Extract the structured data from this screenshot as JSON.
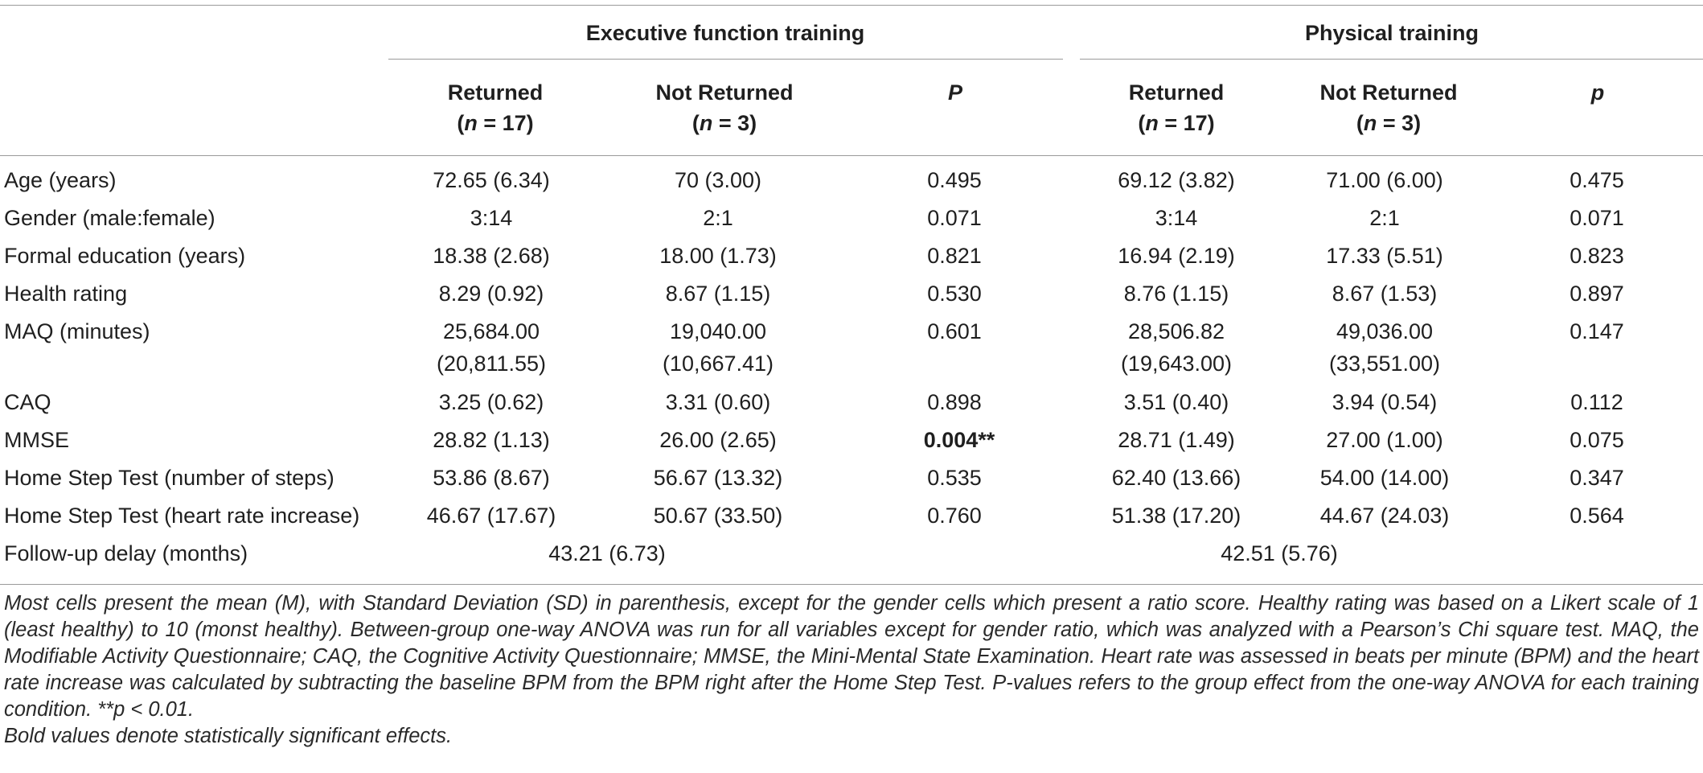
{
  "groups": {
    "exec": "Executive function training",
    "phys": "Physical training"
  },
  "columns": {
    "returned": "Returned",
    "not_returned": "Not Returned",
    "n_returned_pre": "(",
    "n_italic": "n",
    "n17": " = 17)",
    "n3": " = 3)",
    "p_exec": "P",
    "p_phys": "p"
  },
  "rows": [
    {
      "label": "Age (years)",
      "ef_ret": "72.65 (6.34)",
      "ef_not": "70 (3.00)",
      "ef_p": "0.495",
      "pt_ret": "69.12 (3.82)",
      "pt_not": "71.00 (6.00)",
      "pt_p": "0.475"
    },
    {
      "label": "Gender (male:female)",
      "ef_ret": "3:14",
      "ef_not": "2:1",
      "ef_p": "0.071",
      "pt_ret": "3:14",
      "pt_not": "2:1",
      "pt_p": "0.071"
    },
    {
      "label": "Formal education (years)",
      "ef_ret": "18.38 (2.68)",
      "ef_not": "18.00 (1.73)",
      "ef_p": "0.821",
      "pt_ret": "16.94 (2.19)",
      "pt_not": "17.33 (5.51)",
      "pt_p": "0.823"
    },
    {
      "label": "Health rating",
      "ef_ret": "8.29 (0.92)",
      "ef_not": "8.67 (1.15)",
      "ef_p": "0.530",
      "pt_ret": "8.76 (1.15)",
      "pt_not": "8.67 (1.53)",
      "pt_p": "0.897"
    },
    {
      "label": "MAQ (minutes)",
      "ef_ret": "25,684.00",
      "ef_ret2": "(20,811.55)",
      "ef_not": "19,040.00",
      "ef_not2": "(10,667.41)",
      "ef_p": "0.601",
      "pt_ret": "28,506.82",
      "pt_ret2": "(19,643.00)",
      "pt_not": "49,036.00",
      "pt_not2": "(33,551.00)",
      "pt_p": "0.147"
    },
    {
      "label": "CAQ",
      "ef_ret": "3.25 (0.62)",
      "ef_not": "3.31 (0.60)",
      "ef_p": "0.898",
      "pt_ret": "3.51 (0.40)",
      "pt_not": "3.94 (0.54)",
      "pt_p": "0.112"
    },
    {
      "label": "MMSE",
      "ef_ret": "28.82 (1.13)",
      "ef_not": "26.00 (2.65)",
      "ef_p": "0.004**",
      "pt_ret": "28.71 (1.49)",
      "pt_not": "27.00 (1.00)",
      "pt_p": "0.075"
    },
    {
      "label": "Home Step Test (number of steps)",
      "ef_ret": "53.86 (8.67)",
      "ef_not": "56.67 (13.32)",
      "ef_p": "0.535",
      "pt_ret": "62.40 (13.66)",
      "pt_not": "54.00 (14.00)",
      "pt_p": "0.347"
    },
    {
      "label": "Home Step Test (heart rate increase)",
      "ef_ret": "46.67 (17.67)",
      "ef_not": "50.67 (33.50)",
      "ef_p": "0.760",
      "pt_ret": "51.38 (17.20)",
      "pt_not": "44.67 (24.03)",
      "pt_p": "0.564"
    }
  ],
  "followup": {
    "label": "Follow-up delay (months)",
    "exec": "43.21 (6.73)",
    "phys": "42.51 (5.76)"
  },
  "footnote": {
    "body": "Most cells present the mean (M), with Standard Deviation (SD) in parenthesis, except for the gender cells which present a ratio score. Healthy rating was based on a Likert scale of 1 (least healthy) to 10 (monst healthy). Between-group one-way ANOVA was run for all variables except for gender ratio, which was analyzed with a Pearson’s Chi square test. MAQ, the Modifiable Activity Questionnaire; CAQ, the Cognitive Activity Questionnaire; MMSE, the Mini-Mental State Examination. Heart rate was assessed in beats per minute (BPM) and the heart rate increase was calculated by subtracting the baseline BPM from the BPM right after the Home Step Test. P-values refers to the group effect from the one-way ANOVA for each training condition. **p < 0.01.",
    "bold_note": "Bold values denote statistically significant effects."
  }
}
